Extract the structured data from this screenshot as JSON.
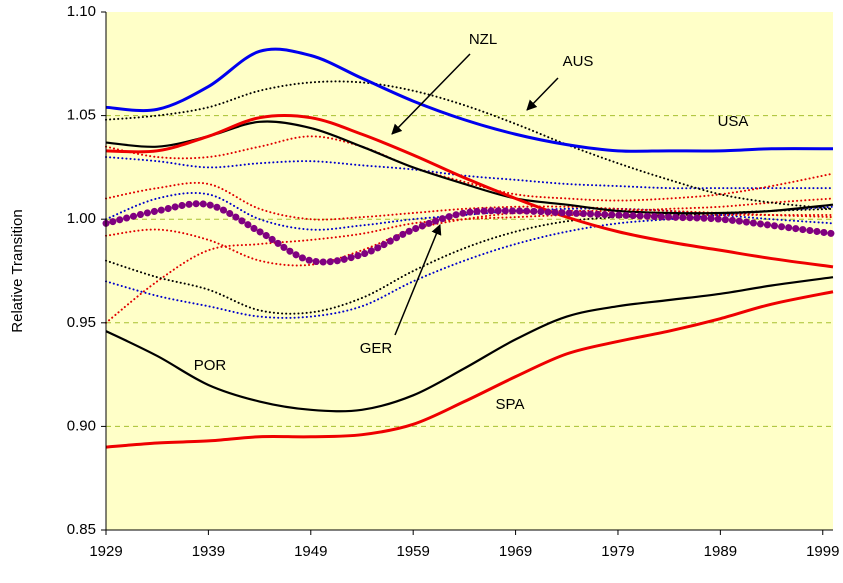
{
  "chart_data": {
    "type": "line",
    "y_label": "Relative Transition",
    "x": [
      1929,
      1934,
      1939,
      1944,
      1949,
      1954,
      1959,
      1964,
      1969,
      1974,
      1979,
      1984,
      1989,
      1994,
      2000
    ],
    "xlim": [
      1929,
      2000
    ],
    "xticks": [
      1929,
      1939,
      1949,
      1959,
      1969,
      1979,
      1989,
      1999
    ],
    "ylim": [
      0.85,
      1.1
    ],
    "yticks": [
      0.85,
      {
        "value": 0.9,
        "label": "0.90"
      },
      0.95,
      {
        "value": 1.0,
        "label": "1.00"
      },
      1.05,
      {
        "value": 1.1,
        "label": "1.10"
      }
    ],
    "grid_lines": [
      0.9,
      0.95,
      1.0,
      1.05
    ],
    "series": [
      {
        "color": "#0000cc",
        "style": "dotted",
        "values": [
          1.03,
          1.028,
          1.025,
          1.027,
          1.028,
          1.026,
          1.024,
          1.021,
          1.019,
          1.017,
          1.016,
          1.015,
          1.015,
          1.015,
          1.015
        ]
      },
      {
        "color": "#0000cc",
        "style": "dotted",
        "values": [
          0.97,
          0.963,
          0.958,
          0.953,
          0.953,
          0.958,
          0.97,
          0.98,
          0.988,
          0.994,
          0.998,
          1.0,
          1.002,
          1.004,
          1.006
        ]
      },
      {
        "color": "#0000cc",
        "style": "dotted",
        "values": [
          1.0,
          1.01,
          1.012,
          1.0,
          0.995,
          0.997,
          1.0,
          1.002,
          1.004,
          1.005,
          1.005,
          1.004,
          1.002,
          1.0,
          0.998
        ]
      },
      {
        "color": "#e00000",
        "style": "dotted",
        "values": [
          1.035,
          1.03,
          1.03,
          1.035,
          1.04,
          1.035,
          1.025,
          1.018,
          1.012,
          1.01,
          1.009,
          1.01,
          1.012,
          1.016,
          1.022
        ]
      },
      {
        "color": "#e00000",
        "style": "dotted",
        "values": [
          1.01,
          1.015,
          1.017,
          1.005,
          1.0,
          1.001,
          1.003,
          1.005,
          1.006,
          1.006,
          1.005,
          1.004,
          1.003,
          1.002,
          1.001
        ]
      },
      {
        "color": "#e00000",
        "style": "dotted",
        "values": [
          0.992,
          0.995,
          0.99,
          0.98,
          0.978,
          0.985,
          0.995,
          1.0,
          1.003,
          1.004,
          1.004,
          1.005,
          1.006,
          1.008,
          1.01
        ]
      },
      {
        "color": "#e00000",
        "style": "dotted",
        "values": [
          0.95,
          0.97,
          0.985,
          0.988,
          0.99,
          0.993,
          0.998,
          1.0,
          1.001,
          1.002,
          1.002,
          1.002,
          1.002,
          1.002,
          1.002
        ]
      },
      {
        "color": "#000000",
        "style": "dotted",
        "values": [
          0.98,
          0.972,
          0.966,
          0.956,
          0.955,
          0.962,
          0.975,
          0.986,
          0.994,
          0.999,
          1.001,
          1.002,
          1.003,
          1.004,
          1.005
        ]
      },
      {
        "name": "AUS",
        "color": "#000000",
        "style": "dotted",
        "values": [
          1.048,
          1.05,
          1.054,
          1.062,
          1.066,
          1.066,
          1.062,
          1.055,
          1.046,
          1.036,
          1.027,
          1.019,
          1.012,
          1.008,
          1.005
        ]
      },
      {
        "color": "#000000",
        "style": "solid",
        "values": [
          1.037,
          1.035,
          1.04,
          1.047,
          1.044,
          1.035,
          1.025,
          1.017,
          1.01,
          1.007,
          1.004,
          1.003,
          1.003,
          1.004,
          1.007
        ]
      },
      {
        "name": "USA",
        "color": "#0000ee",
        "style": "solid",
        "values": [
          1.054,
          1.053,
          1.064,
          1.081,
          1.079,
          1.068,
          1.057,
          1.048,
          1.041,
          1.036,
          1.033,
          1.033,
          1.033,
          1.034,
          1.034
        ]
      },
      {
        "name": "NZL",
        "color": "#ee0000",
        "style": "solid",
        "values": [
          1.033,
          1.033,
          1.04,
          1.049,
          1.049,
          1.041,
          1.031,
          1.02,
          1.01,
          1.001,
          0.994,
          0.989,
          0.985,
          0.981,
          0.977
        ]
      },
      {
        "name": "GER",
        "color": "#800080",
        "style": "dots",
        "values": [
          0.998,
          1.004,
          1.007,
          0.994,
          0.98,
          0.983,
          0.995,
          1.003,
          1.004,
          1.003,
          1.002,
          1.001,
          1.0,
          0.997,
          0.993
        ]
      },
      {
        "name": "POR",
        "color": "#000000",
        "style": "solid",
        "values": [
          0.946,
          0.934,
          0.92,
          0.912,
          0.908,
          0.908,
          0.915,
          0.928,
          0.942,
          0.953,
          0.958,
          0.961,
          0.964,
          0.968,
          0.972
        ]
      },
      {
        "name": "SPA",
        "color": "#ee0000",
        "style": "solid",
        "values": [
          0.89,
          0.892,
          0.893,
          0.895,
          0.895,
          0.896,
          0.901,
          0.912,
          0.924,
          0.935,
          0.941,
          0.946,
          0.952,
          0.959,
          0.965
        ]
      }
    ]
  }
}
